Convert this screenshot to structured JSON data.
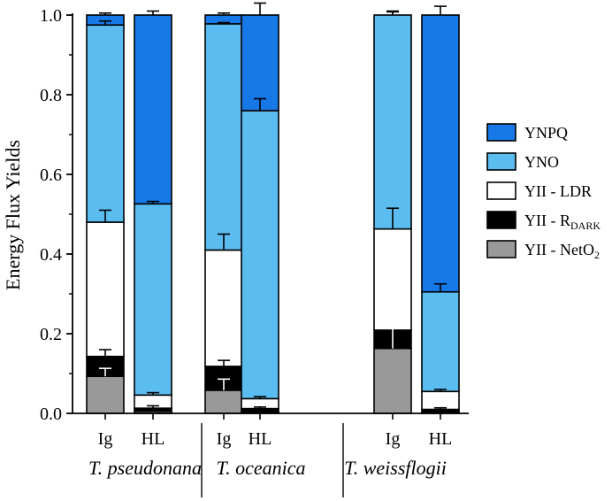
{
  "chart_data": {
    "type": "bar",
    "stacked": true,
    "ylabel": "Energy Flux Yields",
    "ylim": [
      0,
      1.0
    ],
    "yticks": [
      "0.0",
      "0.2",
      "0.4",
      "0.6",
      "0.8",
      "1.0"
    ],
    "categories": [
      "Ig",
      "HL",
      "Ig",
      "HL",
      "Ig",
      "HL"
    ],
    "groups": [
      {
        "label": "T. pseudonana",
        "categories": [
          "Ig",
          "HL"
        ]
      },
      {
        "label": "T. oceanica",
        "categories": [
          "Ig",
          "HL"
        ]
      },
      {
        "label": "T. weissflogii",
        "categories": [
          "Ig",
          "HL"
        ]
      }
    ],
    "legend_position": "right",
    "legend": [
      {
        "key": "ynpq",
        "text": "YNPQ",
        "sub": "",
        "tail": ""
      },
      {
        "key": "yno",
        "text": "YNO",
        "sub": "",
        "tail": ""
      },
      {
        "key": "ldr",
        "text": "YII - LDR",
        "sub": "",
        "tail": ""
      },
      {
        "key": "rdark",
        "text": "YII - R",
        "sub": "DARK",
        "tail": ""
      },
      {
        "key": "neto2",
        "text": "YII - NetO",
        "sub": "2",
        "tail": ""
      }
    ],
    "colors": {
      "ynpq": "#1778e8",
      "yno": "#5bbcf0",
      "ldr": "#ffffff",
      "rdark": "#000000",
      "neto2": "#999999"
    },
    "series": [
      {
        "key": "neto2",
        "values": [
          0.093,
          0.005,
          0.058,
          0.004,
          0.163,
          0.004
        ],
        "errors": [
          0.02,
          0.0,
          0.028,
          0.0,
          0.06,
          0.0
        ]
      },
      {
        "key": "rdark",
        "values": [
          0.05,
          0.008,
          0.06,
          0.008,
          0.046,
          0.006
        ],
        "errors": [
          0.017,
          0.006,
          0.015,
          0.004,
          0.0,
          0.004
        ]
      },
      {
        "key": "ldr",
        "values": [
          0.337,
          0.033,
          0.292,
          0.025,
          0.254,
          0.045
        ],
        "errors": [
          0.03,
          0.006,
          0.04,
          0.005,
          0.052,
          0.005
        ]
      },
      {
        "key": "yno",
        "values": [
          0.495,
          0.48,
          0.568,
          0.723,
          0.537,
          0.25
        ],
        "errors": [
          0.01,
          0.006,
          0.003,
          0.03,
          0.008,
          0.02
        ]
      },
      {
        "key": "ynpq",
        "values": [
          0.025,
          0.474,
          0.022,
          0.24,
          0.0,
          0.695
        ],
        "errors": [
          0.005,
          0.01,
          0.005,
          0.03,
          0.01,
          0.022
        ]
      }
    ]
  }
}
